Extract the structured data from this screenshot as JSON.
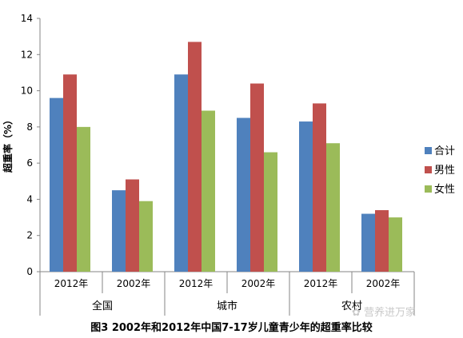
{
  "chart_data": {
    "type": "bar",
    "title": "图3 2002年和2012年中国7-17岁儿童青少年的超重率比较",
    "ylabel": "超重率（%）",
    "xlabel": "",
    "ylim": [
      0,
      14
    ],
    "yticks": [
      0,
      2,
      4,
      6,
      8,
      10,
      12,
      14
    ],
    "grid": false,
    "legend_position": "right",
    "categories": [
      "2012年",
      "2002年",
      "2012年",
      "2002年",
      "2012年",
      "2002年"
    ],
    "groups": [
      {
        "label": "全国",
        "categories": [
          "2012年",
          "2002年"
        ]
      },
      {
        "label": "城市",
        "categories": [
          "2012年",
          "2002年"
        ]
      },
      {
        "label": "农村",
        "categories": [
          "2012年",
          "2002年"
        ]
      }
    ],
    "series": [
      {
        "name": "合计",
        "color": "#4F81BD",
        "values": [
          9.6,
          4.5,
          10.9,
          8.5,
          8.3,
          3.2
        ]
      },
      {
        "name": "男性",
        "color": "#C0504D",
        "values": [
          10.9,
          5.1,
          12.7,
          10.4,
          9.3,
          3.4
        ]
      },
      {
        "name": "女性",
        "color": "#9BBB59",
        "values": [
          8.0,
          3.9,
          8.9,
          6.6,
          7.1,
          3.0
        ]
      }
    ]
  },
  "watermark": "营养进万家"
}
